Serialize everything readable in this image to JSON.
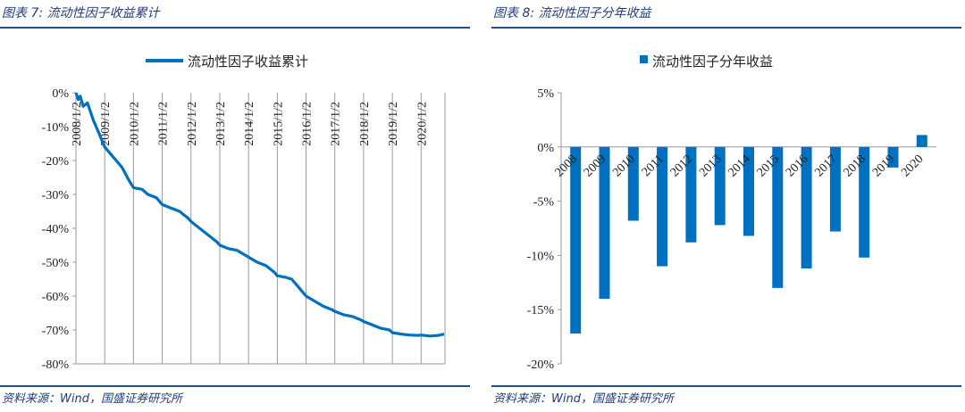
{
  "figures": [
    {
      "title": "图表 7: 流动性因子收益累计",
      "source": "资料来源：Wind，国盛证券研究所"
    },
    {
      "title": "图表 8: 流动性因子分年收益",
      "source": "资料来源：Wind，国盛证券研究所"
    }
  ],
  "colors": {
    "series": "#0070c0",
    "rule": "#1f4e8c",
    "axis": "#999999"
  },
  "chart_data": [
    {
      "type": "line",
      "legend": "流动性因子收益累计",
      "legend_position": "top",
      "grid": "vertical",
      "ylim": [
        -80,
        0
      ],
      "yticks": [
        "0%",
        "-10%",
        "-20%",
        "-30%",
        "-40%",
        "-50%",
        "-60%",
        "-70%",
        "-80%"
      ],
      "xticks": [
        "2008/1/2",
        "2009/1/2",
        "2010/1/2",
        "2011/1/2",
        "2012/1/2",
        "2013/1/2",
        "2014/1/2",
        "2015/1/2",
        "2016/1/2",
        "2017/1/2",
        "2018/1/2",
        "2019/1/2",
        "2020/1/2"
      ],
      "series": [
        {
          "name": "流动性因子收益累计",
          "x": [
            2008.0,
            2008.08,
            2008.15,
            2008.25,
            2008.4,
            2008.6,
            2008.8,
            2009.0,
            2009.3,
            2009.6,
            2009.85,
            2010.0,
            2010.3,
            2010.5,
            2010.8,
            2011.0,
            2011.3,
            2011.6,
            2011.9,
            2012.0,
            2012.3,
            2012.6,
            2012.9,
            2013.0,
            2013.3,
            2013.6,
            2013.9,
            2014.0,
            2014.3,
            2014.6,
            2014.9,
            2015.0,
            2015.3,
            2015.5,
            2015.7,
            2015.9,
            2016.0,
            2016.3,
            2016.6,
            2016.9,
            2017.0,
            2017.3,
            2017.6,
            2017.9,
            2018.0,
            2018.3,
            2018.6,
            2018.9,
            2019.0,
            2019.3,
            2019.6,
            2019.9,
            2020.0,
            2020.3,
            2020.6,
            2020.8
          ],
          "y": [
            0,
            -2,
            -1,
            -4,
            -3,
            -8,
            -12,
            -16,
            -19,
            -22,
            -26,
            -28,
            -28.5,
            -30,
            -31,
            -33,
            -34,
            -35,
            -37,
            -38,
            -40,
            -42,
            -44,
            -45,
            -46,
            -46.5,
            -48,
            -48.5,
            -50,
            -51,
            -53,
            -54,
            -54.5,
            -55,
            -57,
            -59,
            -60,
            -61.5,
            -63,
            -64,
            -64.5,
            -65.5,
            -66,
            -67,
            -67.5,
            -68.5,
            -69.5,
            -70,
            -70.8,
            -71.2,
            -71.5,
            -71.6,
            -71.5,
            -71.8,
            -71.6,
            -71.2
          ]
        }
      ]
    },
    {
      "type": "bar",
      "legend": "流动性因子分年收益",
      "legend_position": "top",
      "grid": "none",
      "ylim": [
        -20,
        5
      ],
      "yticks": [
        "5%",
        "0%",
        "-5%",
        "-10%",
        "-15%",
        "-20%"
      ],
      "categories": [
        "2008",
        "2009",
        "2010",
        "2011",
        "2012",
        "2013",
        "2014",
        "2015",
        "2016",
        "2017",
        "2018",
        "2019",
        "2020"
      ],
      "series": [
        {
          "name": "流动性因子分年收益",
          "values": [
            -17.2,
            -14.0,
            -6.8,
            -11.0,
            -8.8,
            -7.2,
            -8.2,
            -13.0,
            -11.2,
            -7.8,
            -10.2,
            -1.9,
            1.1
          ]
        }
      ]
    }
  ]
}
